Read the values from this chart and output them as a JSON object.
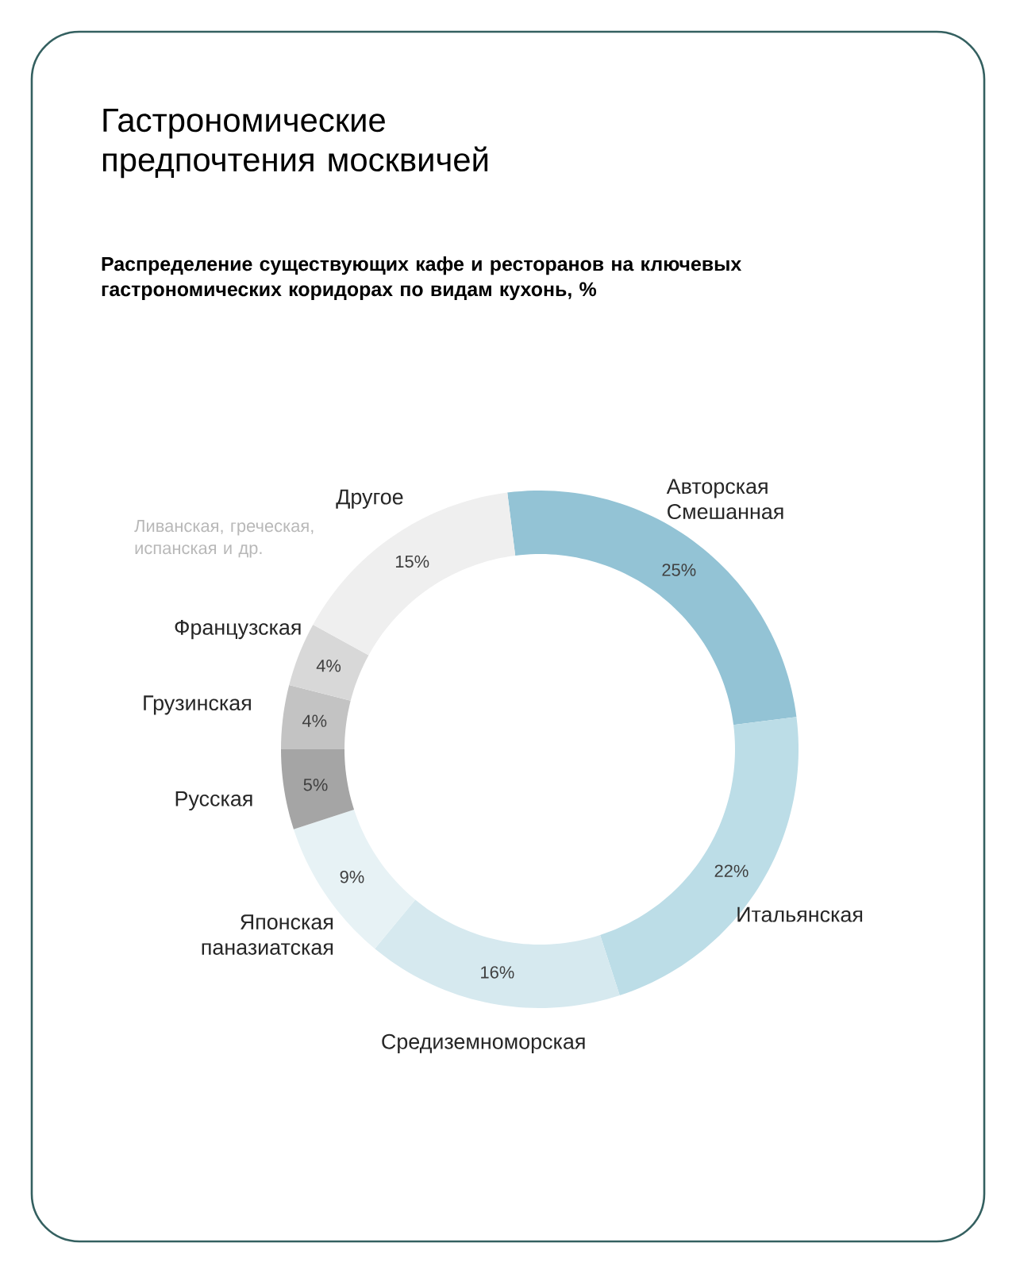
{
  "chart_data": {
    "type": "donut",
    "title": "Гастрономические предпочтения москвичей",
    "subtitle": "Распределение существующих кафе и ресторанов на ключевых гастрономических коридорах по видам кухонь, %",
    "categories": [
      "Авторская Смешанная",
      "Итальянская",
      "Средиземноморская",
      "Японская паназиатская",
      "Русская",
      "Грузинская",
      "Французская",
      "Другое"
    ],
    "values": [
      25,
      22,
      16,
      9,
      5,
      4,
      4,
      15
    ],
    "colors": [
      "#93c3d5",
      "#bcdde7",
      "#d6e9ef",
      "#e7f2f5",
      "#a5a5a5",
      "#c3c3c3",
      "#d8d8d8",
      "#efefef"
    ],
    "value_labels": [
      "25%",
      "22%",
      "16%",
      "9%",
      "5%",
      "4%",
      "4%",
      "15%"
    ],
    "annotations": [
      "Ливанская, греческая, испанская и др."
    ]
  }
}
